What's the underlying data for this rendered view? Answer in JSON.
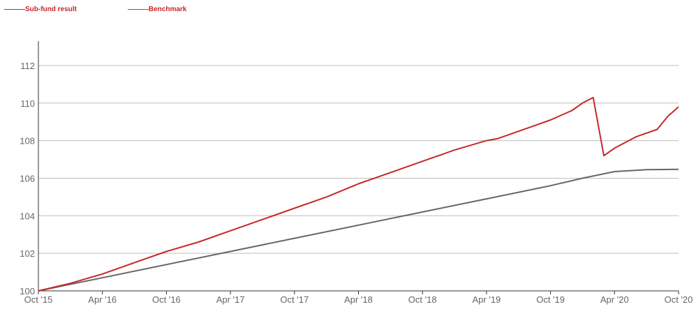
{
  "chart_data": {
    "type": "line",
    "legend": [
      {
        "name": "Sub-fund result",
        "color": "#c62828"
      },
      {
        "name": "Benchmark",
        "color": "#666666"
      }
    ],
    "x_ticks": [
      "Oct '15",
      "Apr '16",
      "Oct '16",
      "Apr '17",
      "Oct '17",
      "Apr '18",
      "Oct '18",
      "Apr '19",
      "Oct '19",
      "Apr '20",
      "Oct '20"
    ],
    "y_ticks": [
      "100",
      "102",
      "104",
      "106",
      "108",
      "110",
      "112"
    ],
    "ylim": [
      100,
      113
    ],
    "grid": true,
    "series": [
      {
        "name": "Sub-fund result",
        "color": "#c62828",
        "points": [
          [
            "Oct '15",
            100.0
          ],
          [
            "Jan '16",
            100.4
          ],
          [
            "Apr '16",
            100.9
          ],
          [
            "Jul '16",
            101.5
          ],
          [
            "Oct '16",
            102.1
          ],
          [
            "Jan '17",
            102.6
          ],
          [
            "Apr '17",
            103.2
          ],
          [
            "Jul '17",
            103.8
          ],
          [
            "Oct '17",
            104.4
          ],
          [
            "Jan '18",
            105.0
          ],
          [
            "Apr '18",
            105.7
          ],
          [
            "Jul '18",
            106.3
          ],
          [
            "Oct '18",
            106.9
          ],
          [
            "Jan '19",
            107.5
          ],
          [
            "Apr '19",
            108.0
          ],
          [
            "May '19",
            108.1
          ],
          [
            "Jul '19",
            108.5
          ],
          [
            "Oct '19",
            109.1
          ],
          [
            "Dec '19",
            109.6
          ],
          [
            "Jan '20",
            110.0
          ],
          [
            "Feb '20",
            110.3
          ],
          [
            "Mar '20",
            107.2
          ],
          [
            "Apr '20",
            107.6
          ],
          [
            "Jun '20",
            108.2
          ],
          [
            "Aug '20",
            108.6
          ],
          [
            "Sep '20",
            109.3
          ],
          [
            "Oct '20",
            109.8
          ]
        ]
      },
      {
        "name": "Benchmark",
        "color": "#666666",
        "points": [
          [
            "Oct '15",
            100.0
          ],
          [
            "Apr '16",
            100.7
          ],
          [
            "Oct '16",
            101.4
          ],
          [
            "Apr '17",
            102.1
          ],
          [
            "Oct '17",
            102.8
          ],
          [
            "Apr '18",
            103.5
          ],
          [
            "Oct '18",
            104.2
          ],
          [
            "Apr '19",
            104.9
          ],
          [
            "Oct '19",
            105.6
          ],
          [
            "Jan '20",
            106.0
          ],
          [
            "Apr '20",
            106.35
          ],
          [
            "Jul '20",
            106.45
          ],
          [
            "Oct '20",
            106.47
          ]
        ]
      }
    ]
  }
}
